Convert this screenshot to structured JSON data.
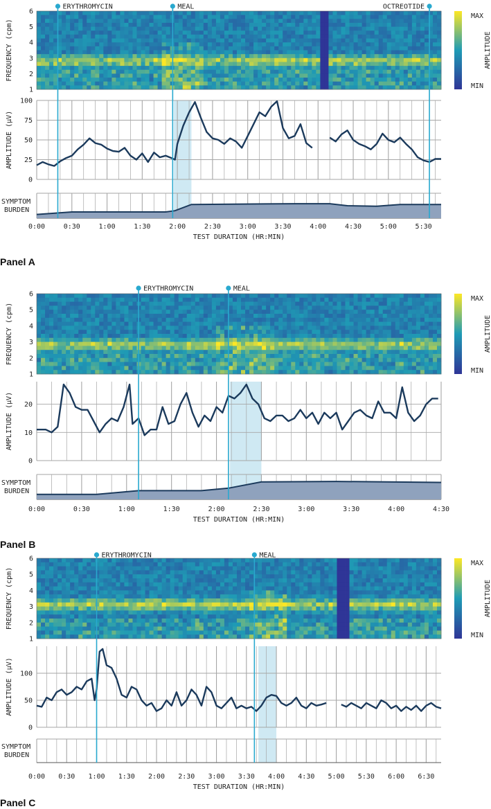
{
  "colors": {
    "line": "#1b3a5c",
    "marker": "#29a9cf",
    "meal_band": "#cfe9f3",
    "grid": "#a6a6a6",
    "spec_lo": "#2f3597",
    "spec_mid": "#1f9bb5",
    "spec_hi": "#fde725",
    "burden_fill": "#8fa2bd"
  },
  "common": {
    "freq_label": "FREQUENCY (cpm)",
    "amp_label": "AMPLITUDE (μV)",
    "symptom_label_1": "SYMPTOM",
    "symptom_label_2": "BURDEN",
    "x_label": "TEST DURATION (HR:MIN)",
    "colorbar_max": "MAX",
    "colorbar_min": "MIN",
    "colorbar_label": "AMPLITUDE",
    "freq_ticks": [
      "1",
      "2",
      "3",
      "4",
      "5",
      "6"
    ]
  },
  "chart_data": [
    {
      "panel": "Panel A",
      "type": "line",
      "duration_min": 345,
      "x_ticks": [
        "0:00",
        "0:30",
        "1:00",
        "1:30",
        "2:00",
        "2:30",
        "3:00",
        "3:30",
        "4:00",
        "4:30",
        "5:00",
        "5:30"
      ],
      "y_ticks": [
        "0",
        "25",
        "50",
        "75",
        "100"
      ],
      "ymax": 100,
      "events": [
        {
          "label": "ERYTHROMYCIN",
          "t": 18
        },
        {
          "label": "MEAL",
          "t": 116
        },
        {
          "label": "OCTREOTIDE",
          "t": 335
        }
      ],
      "meal_band": [
        117,
        132
      ],
      "gap": [
        [
          235,
          250
        ]
      ],
      "spec_gap": [
        241,
        250
      ],
      "dominant_freq": 2.8,
      "amplitude": [
        [
          0,
          18
        ],
        [
          5,
          22
        ],
        [
          10,
          19
        ],
        [
          15,
          17
        ],
        [
          20,
          23
        ],
        [
          25,
          27
        ],
        [
          30,
          30
        ],
        [
          35,
          38
        ],
        [
          40,
          44
        ],
        [
          45,
          52
        ],
        [
          50,
          46
        ],
        [
          55,
          44
        ],
        [
          60,
          39
        ],
        [
          65,
          36
        ],
        [
          70,
          35
        ],
        [
          75,
          40
        ],
        [
          80,
          30
        ],
        [
          85,
          25
        ],
        [
          90,
          33
        ],
        [
          95,
          22
        ],
        [
          100,
          34
        ],
        [
          105,
          28
        ],
        [
          110,
          30
        ],
        [
          115,
          27
        ],
        [
          118,
          25
        ],
        [
          120,
          45
        ],
        [
          125,
          68
        ],
        [
          130,
          85
        ],
        [
          135,
          98
        ],
        [
          140,
          78
        ],
        [
          145,
          60
        ],
        [
          150,
          52
        ],
        [
          155,
          50
        ],
        [
          160,
          45
        ],
        [
          165,
          52
        ],
        [
          170,
          48
        ],
        [
          175,
          40
        ],
        [
          180,
          55
        ],
        [
          185,
          70
        ],
        [
          190,
          85
        ],
        [
          195,
          80
        ],
        [
          200,
          92
        ],
        [
          205,
          99
        ],
        [
          210,
          65
        ],
        [
          215,
          52
        ],
        [
          220,
          55
        ],
        [
          225,
          70
        ],
        [
          230,
          46
        ],
        [
          235,
          40
        ],
        [
          250,
          53
        ],
        [
          255,
          48
        ],
        [
          260,
          57
        ],
        [
          265,
          62
        ],
        [
          270,
          50
        ],
        [
          275,
          45
        ],
        [
          280,
          42
        ],
        [
          285,
          38
        ],
        [
          290,
          45
        ],
        [
          295,
          58
        ],
        [
          300,
          50
        ],
        [
          305,
          47
        ],
        [
          310,
          53
        ],
        [
          315,
          45
        ],
        [
          320,
          38
        ],
        [
          325,
          28
        ],
        [
          330,
          24
        ],
        [
          335,
          22
        ],
        [
          340,
          26
        ],
        [
          345,
          26
        ]
      ],
      "symptom": [
        [
          0,
          0.15
        ],
        [
          30,
          0.25
        ],
        [
          110,
          0.25
        ],
        [
          118,
          0.3
        ],
        [
          132,
          0.55
        ],
        [
          220,
          0.58
        ],
        [
          250,
          0.58
        ],
        [
          265,
          0.5
        ],
        [
          290,
          0.48
        ],
        [
          310,
          0.55
        ],
        [
          345,
          0.55
        ]
      ]
    },
    {
      "panel": "Panel B",
      "type": "line",
      "duration_min": 270,
      "x_ticks": [
        "0:00",
        "0:30",
        "1:00",
        "1:30",
        "2:00",
        "2:30",
        "3:00",
        "3:30",
        "4:00",
        "4:30"
      ],
      "y_ticks": [
        "0",
        "10",
        "20"
      ],
      "ymax": 28,
      "events": [
        {
          "label": "ERYTHROMYCIN",
          "t": 68
        },
        {
          "label": "MEAL",
          "t": 128
        }
      ],
      "meal_band": [
        129,
        150
      ],
      "gap": [],
      "spec_gap": null,
      "dominant_freq": 2.8,
      "amplitude": [
        [
          0,
          11
        ],
        [
          6,
          11
        ],
        [
          10,
          10
        ],
        [
          14,
          12
        ],
        [
          18,
          27
        ],
        [
          22,
          24
        ],
        [
          26,
          19
        ],
        [
          30,
          18
        ],
        [
          34,
          18
        ],
        [
          38,
          14
        ],
        [
          42,
          10
        ],
        [
          46,
          13
        ],
        [
          50,
          15
        ],
        [
          54,
          14
        ],
        [
          58,
          19
        ],
        [
          62,
          27
        ],
        [
          64,
          13
        ],
        [
          68,
          15
        ],
        [
          72,
          9
        ],
        [
          76,
          11
        ],
        [
          80,
          11
        ],
        [
          84,
          19
        ],
        [
          88,
          13
        ],
        [
          92,
          14
        ],
        [
          96,
          20
        ],
        [
          100,
          24
        ],
        [
          104,
          17
        ],
        [
          108,
          12
        ],
        [
          112,
          16
        ],
        [
          116,
          14
        ],
        [
          120,
          19
        ],
        [
          124,
          17
        ],
        [
          128,
          23
        ],
        [
          132,
          22
        ],
        [
          136,
          24
        ],
        [
          140,
          27
        ],
        [
          144,
          22
        ],
        [
          148,
          20
        ],
        [
          152,
          15
        ],
        [
          156,
          14
        ],
        [
          160,
          16
        ],
        [
          164,
          16
        ],
        [
          168,
          14
        ],
        [
          172,
          15
        ],
        [
          176,
          18
        ],
        [
          180,
          15
        ],
        [
          184,
          17
        ],
        [
          188,
          13
        ],
        [
          192,
          17
        ],
        [
          196,
          15
        ],
        [
          200,
          17
        ],
        [
          204,
          11
        ],
        [
          208,
          14
        ],
        [
          212,
          17
        ],
        [
          216,
          18
        ],
        [
          220,
          16
        ],
        [
          224,
          15
        ],
        [
          228,
          21
        ],
        [
          232,
          17
        ],
        [
          236,
          17
        ],
        [
          240,
          15
        ],
        [
          244,
          26
        ],
        [
          248,
          17
        ],
        [
          252,
          14
        ],
        [
          256,
          16
        ],
        [
          260,
          20
        ],
        [
          264,
          22
        ],
        [
          268,
          22
        ]
      ],
      "symptom": [
        [
          0,
          0.2
        ],
        [
          40,
          0.2
        ],
        [
          68,
          0.35
        ],
        [
          110,
          0.35
        ],
        [
          128,
          0.45
        ],
        [
          150,
          0.7
        ],
        [
          200,
          0.72
        ],
        [
          270,
          0.68
        ]
      ]
    },
    {
      "panel": "Panel C",
      "type": "line",
      "duration_min": 405,
      "x_ticks": [
        "0:00",
        "0:30",
        "1:00",
        "1:30",
        "2:00",
        "2:30",
        "3:00",
        "3:30",
        "4:00",
        "4:30",
        "5:00",
        "5:30",
        "6:00",
        "6:30"
      ],
      "y_ticks": [
        "0",
        "50",
        "100"
      ],
      "ymax": 150,
      "events": [
        {
          "label": "ERYTHROMYCIN",
          "t": 60
        },
        {
          "label": "MEAL",
          "t": 218
        }
      ],
      "meal_band": [
        222,
        240
      ],
      "gap": [
        [
          292,
          305
        ]
      ],
      "spec_gap": [
        302,
        313
      ],
      "dominant_freq": 3.1,
      "amplitude": [
        [
          0,
          40
        ],
        [
          5,
          38
        ],
        [
          10,
          55
        ],
        [
          15,
          50
        ],
        [
          20,
          65
        ],
        [
          25,
          70
        ],
        [
          30,
          60
        ],
        [
          35,
          65
        ],
        [
          40,
          75
        ],
        [
          45,
          70
        ],
        [
          50,
          85
        ],
        [
          55,
          90
        ],
        [
          58,
          50
        ],
        [
          60,
          70
        ],
        [
          63,
          140
        ],
        [
          66,
          145
        ],
        [
          70,
          115
        ],
        [
          75,
          110
        ],
        [
          80,
          90
        ],
        [
          85,
          60
        ],
        [
          90,
          55
        ],
        [
          95,
          75
        ],
        [
          100,
          70
        ],
        [
          105,
          50
        ],
        [
          110,
          40
        ],
        [
          115,
          45
        ],
        [
          120,
          30
        ],
        [
          125,
          35
        ],
        [
          130,
          50
        ],
        [
          135,
          40
        ],
        [
          140,
          65
        ],
        [
          145,
          40
        ],
        [
          150,
          50
        ],
        [
          155,
          70
        ],
        [
          160,
          60
        ],
        [
          165,
          40
        ],
        [
          170,
          75
        ],
        [
          175,
          65
        ],
        [
          180,
          40
        ],
        [
          185,
          35
        ],
        [
          190,
          45
        ],
        [
          195,
          55
        ],
        [
          200,
          35
        ],
        [
          205,
          40
        ],
        [
          210,
          35
        ],
        [
          215,
          38
        ],
        [
          220,
          30
        ],
        [
          225,
          40
        ],
        [
          230,
          55
        ],
        [
          235,
          60
        ],
        [
          240,
          58
        ],
        [
          245,
          45
        ],
        [
          250,
          40
        ],
        [
          255,
          45
        ],
        [
          260,
          55
        ],
        [
          265,
          40
        ],
        [
          270,
          35
        ],
        [
          275,
          45
        ],
        [
          280,
          40
        ],
        [
          285,
          42
        ],
        [
          290,
          45
        ],
        [
          305,
          42
        ],
        [
          310,
          38
        ],
        [
          315,
          45
        ],
        [
          320,
          40
        ],
        [
          325,
          35
        ],
        [
          330,
          45
        ],
        [
          335,
          40
        ],
        [
          340,
          35
        ],
        [
          345,
          50
        ],
        [
          350,
          45
        ],
        [
          355,
          35
        ],
        [
          360,
          40
        ],
        [
          365,
          30
        ],
        [
          370,
          38
        ],
        [
          375,
          32
        ],
        [
          380,
          40
        ],
        [
          385,
          30
        ],
        [
          390,
          40
        ],
        [
          395,
          45
        ],
        [
          400,
          38
        ],
        [
          405,
          35
        ]
      ],
      "symptom": null
    }
  ]
}
